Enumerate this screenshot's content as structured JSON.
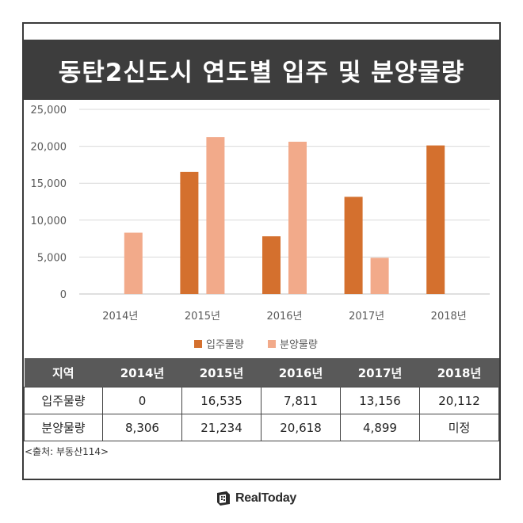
{
  "title": "동탄2신도시 연도별 입주 및 분양물량",
  "chart_data": {
    "type": "bar",
    "categories": [
      "2014년",
      "2015년",
      "2016년",
      "2017년",
      "2018년"
    ],
    "series": [
      {
        "name": "입주물량",
        "color": "#D4702E",
        "values": [
          0,
          16535,
          7811,
          13156,
          20112
        ]
      },
      {
        "name": "분양물량",
        "color": "#F2AA8A",
        "values": [
          8306,
          21234,
          20618,
          4899,
          null
        ]
      }
    ],
    "ylim": [
      0,
      25000
    ],
    "yticks": [
      0,
      5000,
      10000,
      15000,
      20000,
      25000
    ],
    "ytick_labels": [
      "0",
      "5,000",
      "10,000",
      "15,000",
      "20,000",
      "25,000"
    ],
    "grid": true,
    "legend": "bottom"
  },
  "table": {
    "header": [
      "지역",
      "2014년",
      "2015년",
      "2016년",
      "2017년",
      "2018년"
    ],
    "rows": [
      {
        "label": "입주물량",
        "cells": [
          "0",
          "16,535",
          "7,811",
          "13,156",
          "20,112"
        ]
      },
      {
        "label": "분양물량",
        "cells": [
          "8,306",
          "21,234",
          "20,618",
          "4,899",
          "미정"
        ]
      }
    ]
  },
  "source": "<출처: 부동산114>",
  "logo": {
    "text": "RealToday",
    "icon": "realtoday-logo-icon"
  }
}
